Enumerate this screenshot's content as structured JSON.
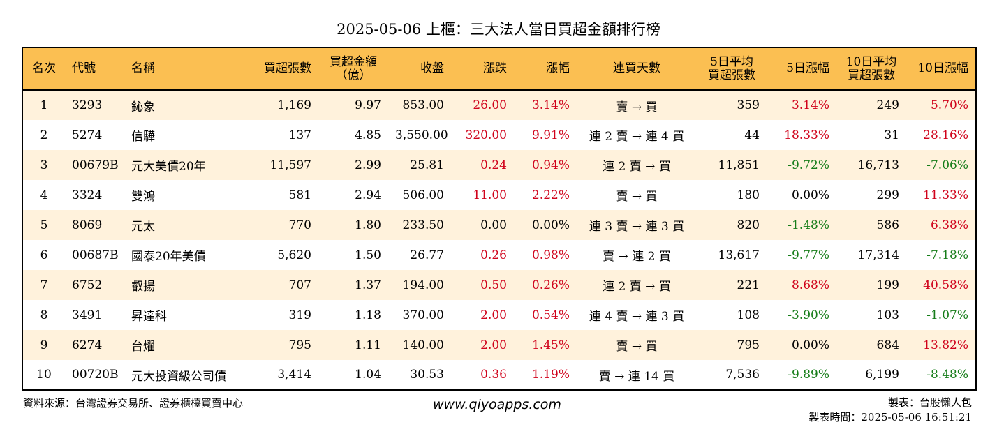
{
  "title": "2025-05-06 上櫃：三大法人當日買超金額排行榜",
  "headers": {
    "rank": "名次",
    "code": "代號",
    "name": "名稱",
    "buy_shares": "買超張數",
    "buy_amount_l1": "買超金額",
    "buy_amount_l2": "（億）",
    "close": "收盤",
    "change": "漲跌",
    "change_pct": "漲幅",
    "streak": "連買天數",
    "avg5_l1": "5日平均",
    "avg5_l2": "買超張數",
    "pct5": "5日漲幅",
    "avg10_l1": "10日平均",
    "avg10_l2": "買超張數",
    "pct10": "10日漲幅"
  },
  "rows": [
    {
      "rank": "1",
      "code": "3293",
      "name": "鈊象",
      "buy_shares": "1,169",
      "buy_amount": "9.97",
      "close": "853.00",
      "change": "26.00",
      "change_color": "red",
      "change_pct": "3.14%",
      "change_pct_color": "red",
      "streak": "賣 → 買",
      "avg5": "359",
      "pct5": "3.14%",
      "pct5_color": "red",
      "avg10": "249",
      "pct10": "5.70%",
      "pct10_color": "red"
    },
    {
      "rank": "2",
      "code": "5274",
      "name": "信驊",
      "buy_shares": "137",
      "buy_amount": "4.85",
      "close": "3,550.00",
      "change": "320.00",
      "change_color": "red",
      "change_pct": "9.91%",
      "change_pct_color": "red",
      "streak": "連 2 賣 → 連 4 買",
      "avg5": "44",
      "pct5": "18.33%",
      "pct5_color": "red",
      "avg10": "31",
      "pct10": "28.16%",
      "pct10_color": "red"
    },
    {
      "rank": "3",
      "code": "00679B",
      "name": "元大美債20年",
      "buy_shares": "11,597",
      "buy_amount": "2.99",
      "close": "25.81",
      "change": "0.24",
      "change_color": "red",
      "change_pct": "0.94%",
      "change_pct_color": "red",
      "streak": "連 2 賣 → 買",
      "avg5": "11,851",
      "pct5": "-9.72%",
      "pct5_color": "green",
      "avg10": "16,713",
      "pct10": "-7.06%",
      "pct10_color": "green"
    },
    {
      "rank": "4",
      "code": "3324",
      "name": "雙鴻",
      "buy_shares": "581",
      "buy_amount": "2.94",
      "close": "506.00",
      "change": "11.00",
      "change_color": "red",
      "change_pct": "2.22%",
      "change_pct_color": "red",
      "streak": "賣 → 買",
      "avg5": "180",
      "pct5": "0.00%",
      "pct5_color": "black",
      "avg10": "299",
      "pct10": "11.33%",
      "pct10_color": "red"
    },
    {
      "rank": "5",
      "code": "8069",
      "name": "元太",
      "buy_shares": "770",
      "buy_amount": "1.80",
      "close": "233.50",
      "change": "0.00",
      "change_color": "black",
      "change_pct": "0.00%",
      "change_pct_color": "black",
      "streak": "連 3 賣 → 連 3 買",
      "avg5": "820",
      "pct5": "-1.48%",
      "pct5_color": "green",
      "avg10": "586",
      "pct10": "6.38%",
      "pct10_color": "red"
    },
    {
      "rank": "6",
      "code": "00687B",
      "name": "國泰20年美債",
      "buy_shares": "5,620",
      "buy_amount": "1.50",
      "close": "26.77",
      "change": "0.26",
      "change_color": "red",
      "change_pct": "0.98%",
      "change_pct_color": "red",
      "streak": "賣 → 連 2 買",
      "avg5": "13,617",
      "pct5": "-9.77%",
      "pct5_color": "green",
      "avg10": "17,314",
      "pct10": "-7.18%",
      "pct10_color": "green"
    },
    {
      "rank": "7",
      "code": "6752",
      "name": "叡揚",
      "buy_shares": "707",
      "buy_amount": "1.37",
      "close": "194.00",
      "change": "0.50",
      "change_color": "red",
      "change_pct": "0.26%",
      "change_pct_color": "red",
      "streak": "連 2 賣 → 買",
      "avg5": "221",
      "pct5": "8.68%",
      "pct5_color": "red",
      "avg10": "199",
      "pct10": "40.58%",
      "pct10_color": "red"
    },
    {
      "rank": "8",
      "code": "3491",
      "name": "昇達科",
      "buy_shares": "319",
      "buy_amount": "1.18",
      "close": "370.00",
      "change": "2.00",
      "change_color": "red",
      "change_pct": "0.54%",
      "change_pct_color": "red",
      "streak": "連 4 賣 → 連 3 買",
      "avg5": "108",
      "pct5": "-3.90%",
      "pct5_color": "green",
      "avg10": "103",
      "pct10": "-1.07%",
      "pct10_color": "green"
    },
    {
      "rank": "9",
      "code": "6274",
      "name": "台燿",
      "buy_shares": "795",
      "buy_amount": "1.11",
      "close": "140.00",
      "change": "2.00",
      "change_color": "red",
      "change_pct": "1.45%",
      "change_pct_color": "red",
      "streak": "賣 → 買",
      "avg5": "795",
      "pct5": "0.00%",
      "pct5_color": "black",
      "avg10": "684",
      "pct10": "13.82%",
      "pct10_color": "red"
    },
    {
      "rank": "10",
      "code": "00720B",
      "name": "元大投資級公司債",
      "buy_shares": "3,414",
      "buy_amount": "1.04",
      "close": "30.53",
      "change": "0.36",
      "change_color": "red",
      "change_pct": "1.19%",
      "change_pct_color": "red",
      "streak": "賣 → 連 14 買",
      "avg5": "7,536",
      "pct5": "-9.89%",
      "pct5_color": "green",
      "avg10": "6,199",
      "pct10": "-8.48%",
      "pct10_color": "green"
    }
  ],
  "footer": {
    "source": "資料來源：台灣證券交易所、證券櫃檯買賣中心",
    "website": "www.qiyoapps.com",
    "maker": "製表：台股懶人包",
    "made_time": "製表時間：2025-05-06 16:51:21"
  },
  "colors": {
    "header_bg": "#fbbf52",
    "row_alt_bg": "#fff2dc",
    "up": "#d0021b",
    "down": "#177d1a"
  }
}
